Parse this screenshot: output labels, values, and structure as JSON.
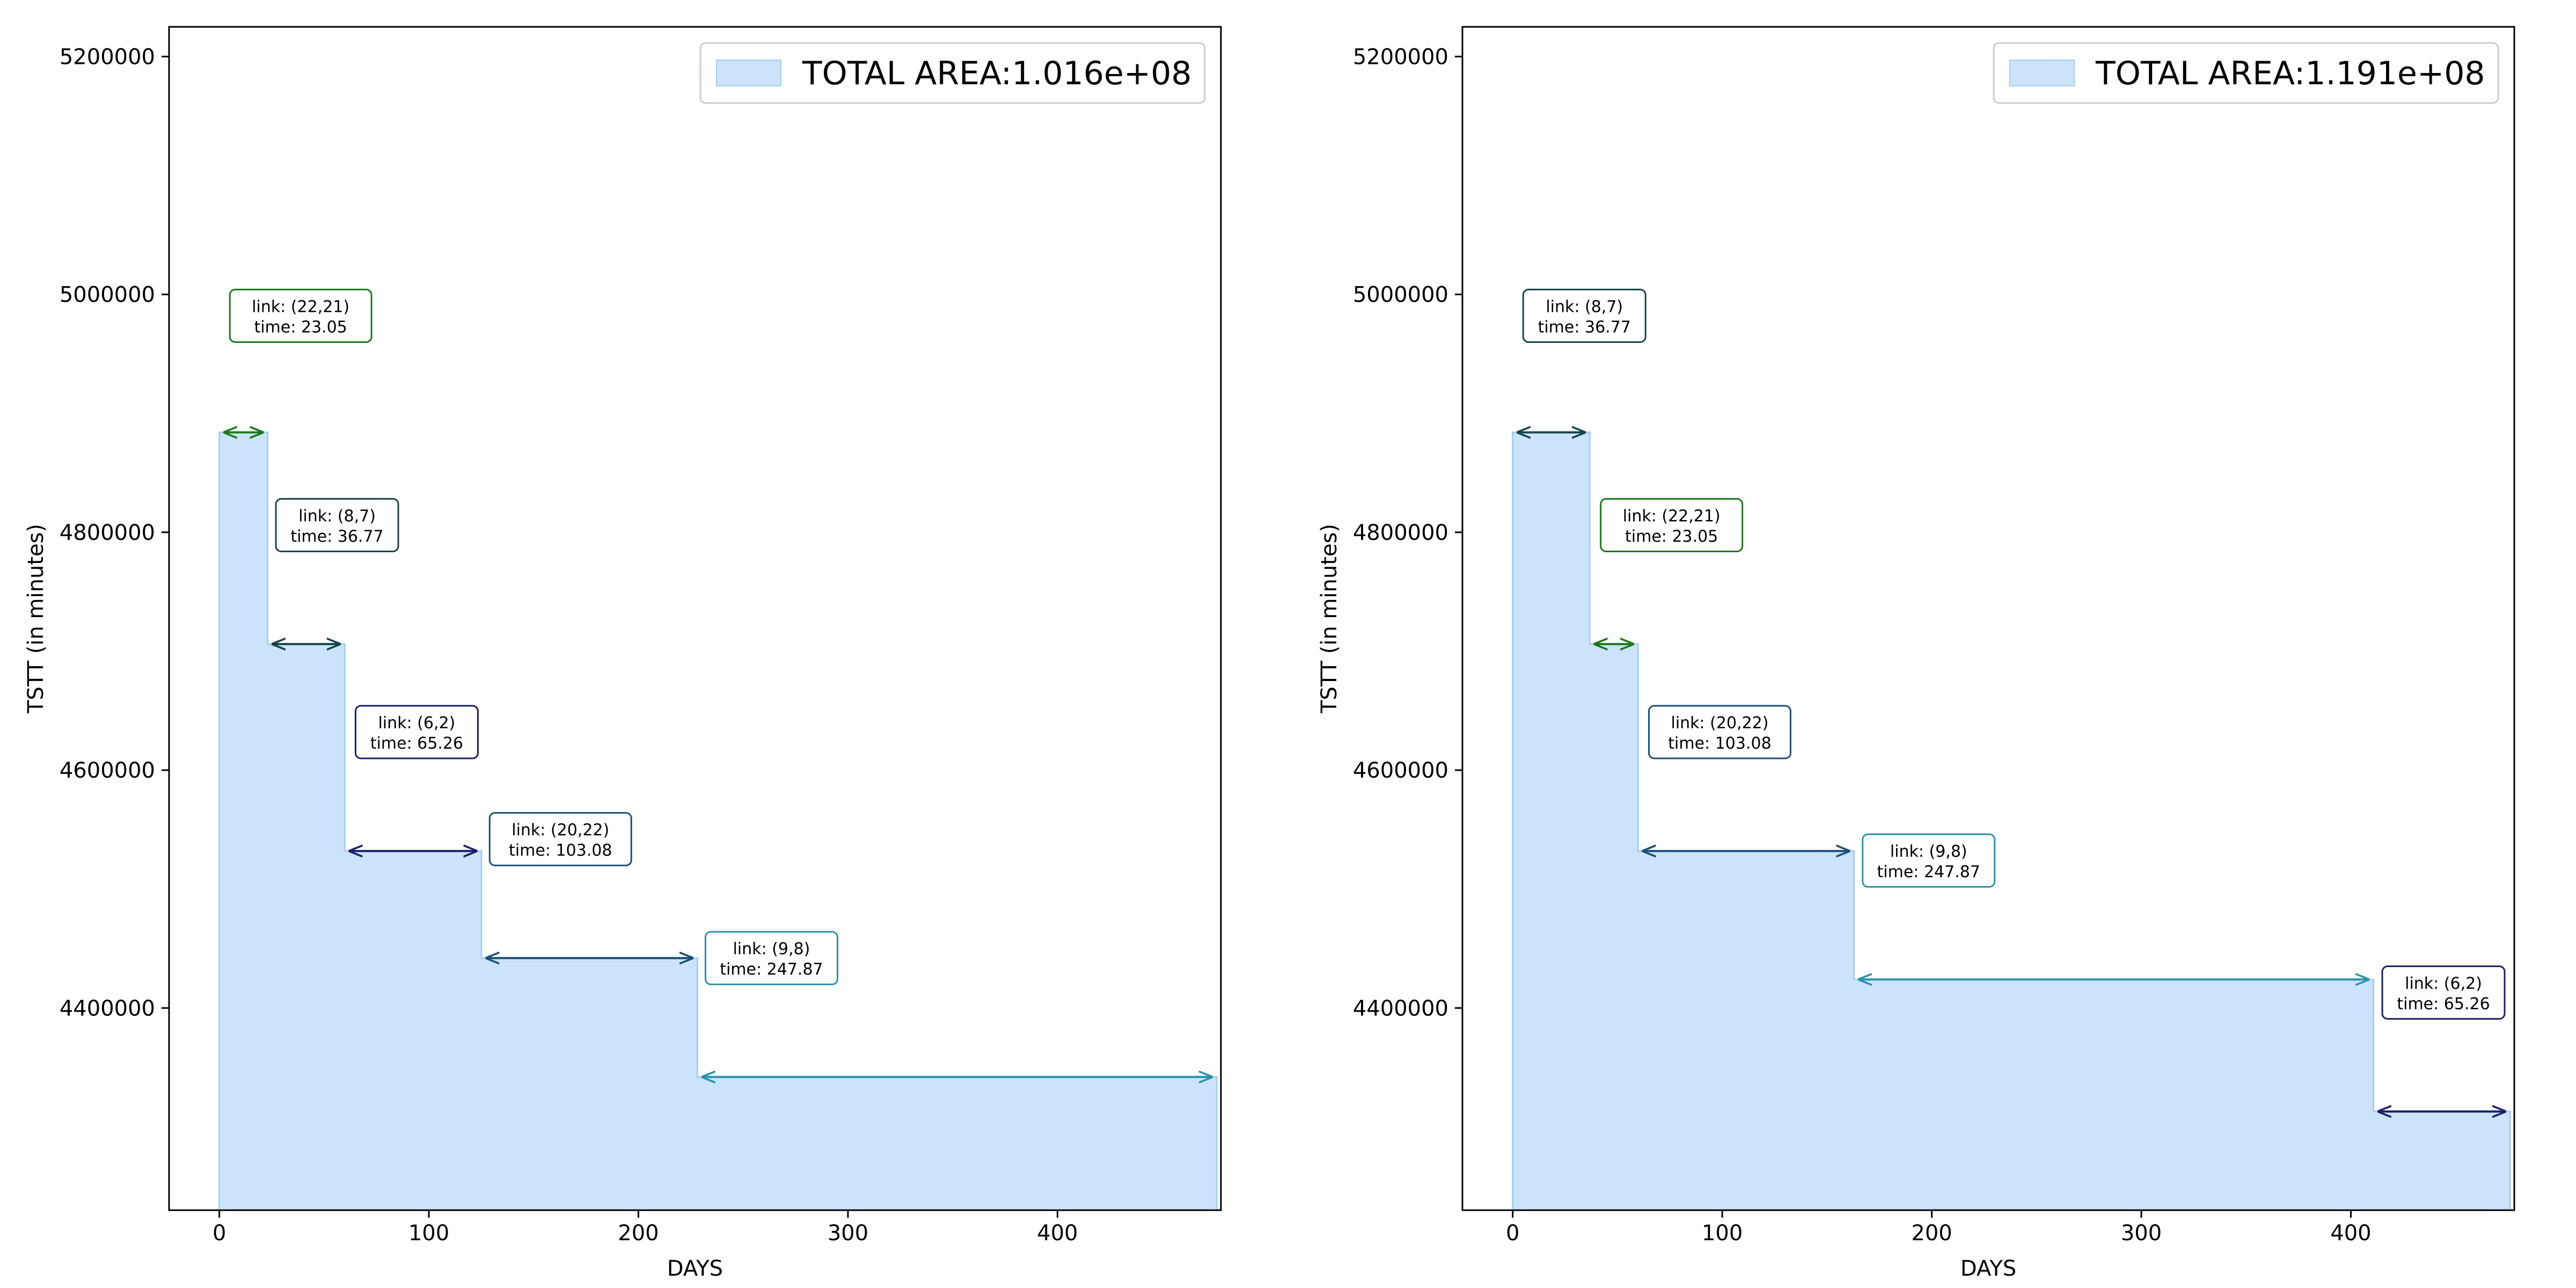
{
  "colors": {
    "fill": "#cce4fb",
    "fill_edge": "#a6cdf2",
    "axis": "#000000",
    "legend_edge": "#cccccc"
  },
  "chart_data": [
    {
      "type": "area",
      "step": true,
      "xlabel": "DAYS",
      "ylabel": "TSTT (in minutes)",
      "xlim": [
        -24,
        478
      ],
      "ylim": [
        4230000,
        5225000
      ],
      "xticks": [
        0,
        100,
        200,
        300,
        400
      ],
      "yticks": [
        4400000,
        4600000,
        4800000,
        5000000,
        5200000
      ],
      "legend": {
        "label": "TOTAL AREA:1.016e+08",
        "placement": "upper right"
      },
      "steps": [
        {
          "start": 0,
          "end": 23.05,
          "y": 4884000,
          "link": "(22,21)",
          "time": "23.05",
          "color": "#1b7a1b"
        },
        {
          "start": 23.05,
          "end": 59.82,
          "y": 4706000,
          "link": "(8,7)",
          "time": "36.77",
          "color": "#14454a"
        },
        {
          "start": 59.82,
          "end": 125.08,
          "y": 4532000,
          "link": "(6,2)",
          "time": "65.26",
          "color": "#1c1f6b"
        },
        {
          "start": 125.08,
          "end": 228.16,
          "y": 4442000,
          "link": "(20,22)",
          "time": "103.08",
          "color": "#1b4f7a"
        },
        {
          "start": 228.16,
          "end": 476.03,
          "y": 4342000,
          "link": "(9,8)",
          "time": "247.87",
          "color": "#2a93ad"
        }
      ],
      "annotations": [
        {
          "text": [
            "link: (22,21)",
            "time: 23.05"
          ],
          "x": 5,
          "y": 4982000,
          "color": "#1b7a1b"
        },
        {
          "text": [
            "link: (8,7)",
            "time: 36.77"
          ],
          "x": 27,
          "y": 4806000,
          "color": "#14454a"
        },
        {
          "text": [
            "link: (6,2)",
            "time: 65.26"
          ],
          "x": 65,
          "y": 4632000,
          "color": "#1c1f6b"
        },
        {
          "text": [
            "link: (20,22)",
            "time: 103.08"
          ],
          "x": 129,
          "y": 4542000,
          "color": "#1b4f7a"
        },
        {
          "text": [
            "link: (9,8)",
            "time: 247.87"
          ],
          "x": 232,
          "y": 4442000,
          "color": "#2a93ad"
        }
      ]
    },
    {
      "type": "area",
      "step": true,
      "xlabel": "DAYS",
      "ylabel": "TSTT (in minutes)",
      "xlim": [
        -24,
        478
      ],
      "ylim": [
        4230000,
        5225000
      ],
      "xticks": [
        0,
        100,
        200,
        300,
        400
      ],
      "yticks": [
        4400000,
        4600000,
        4800000,
        5000000,
        5200000
      ],
      "legend": {
        "label": "TOTAL AREA:1.191e+08",
        "placement": "upper right"
      },
      "steps": [
        {
          "start": 0,
          "end": 36.77,
          "y": 4884000,
          "link": "(8,7)",
          "time": "36.77",
          "color": "#14454a"
        },
        {
          "start": 36.77,
          "end": 59.82,
          "y": 4706000,
          "link": "(22,21)",
          "time": "23.05",
          "color": "#1b7a1b"
        },
        {
          "start": 59.82,
          "end": 162.9,
          "y": 4532000,
          "link": "(20,22)",
          "time": "103.08",
          "color": "#1b4f7a"
        },
        {
          "start": 162.9,
          "end": 410.77,
          "y": 4424000,
          "link": "(9,8)",
          "time": "247.87",
          "color": "#2a93ad"
        },
        {
          "start": 410.77,
          "end": 476.03,
          "y": 4313000,
          "link": "(6,2)",
          "time": "65.26",
          "color": "#1c1f6b"
        }
      ],
      "annotations": [
        {
          "text": [
            "link: (8,7)",
            "time: 36.77"
          ],
          "x": 5,
          "y": 4982000,
          "color": "#14454a"
        },
        {
          "text": [
            "link: (22,21)",
            "time: 23.05"
          ],
          "x": 42,
          "y": 4806000,
          "color": "#1b7a1b"
        },
        {
          "text": [
            "link: (20,22)",
            "time: 103.08"
          ],
          "x": 65,
          "y": 4632000,
          "color": "#1b4f7a"
        },
        {
          "text": [
            "link: (9,8)",
            "time: 247.87"
          ],
          "x": 167,
          "y": 4524000,
          "color": "#2a93ad"
        },
        {
          "text": [
            "link: (6,2)",
            "time: 65.26"
          ],
          "x": 415,
          "y": 4413000,
          "color": "#1c1f6b"
        }
      ]
    }
  ]
}
